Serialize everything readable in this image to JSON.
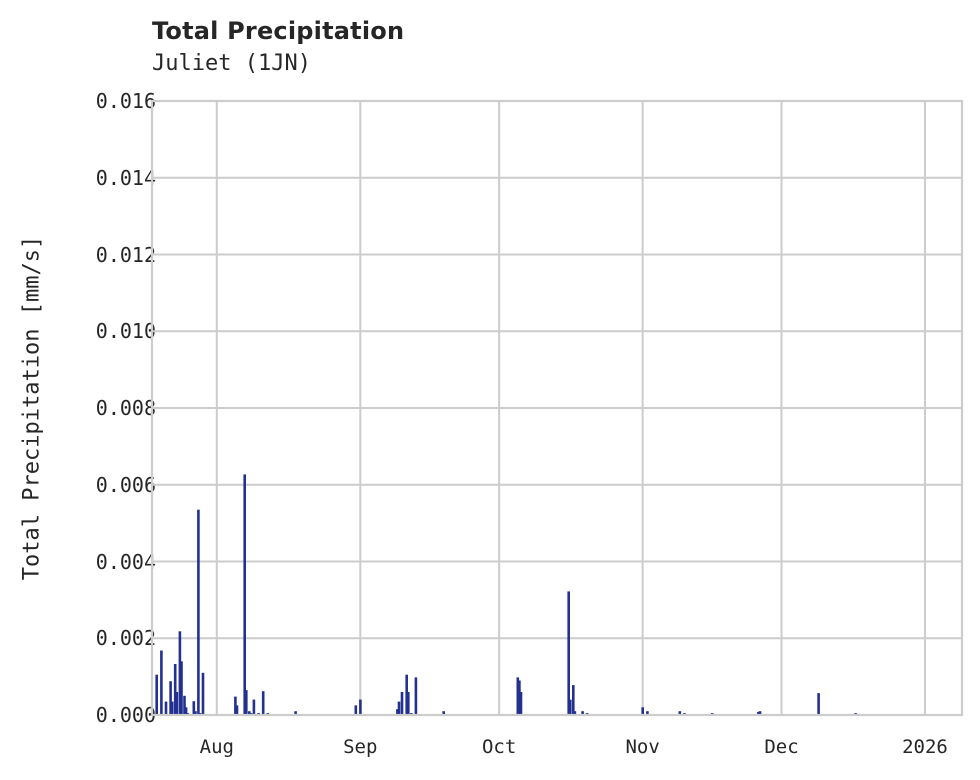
{
  "header": {
    "title": "Total Precipitation",
    "subtitle": "Juliet (1JN)"
  },
  "axes": {
    "ylabel": "Total Precipitation [mm/s]",
    "yticks": [
      "0.000",
      "0.002",
      "0.004",
      "0.006",
      "0.008",
      "0.010",
      "0.012",
      "0.014",
      "0.016"
    ],
    "xticks": [
      "Aug",
      "Sep",
      "Oct",
      "Nov",
      "Dec",
      "2026"
    ]
  },
  "colors": {
    "bar": "#22318f",
    "grid": "#cccccc",
    "frame": "#cccccc",
    "text": "#262626"
  },
  "chart_data": {
    "type": "bar",
    "title": "Total Precipitation",
    "subtitle": "Juliet (1JN)",
    "xlabel": "",
    "ylabel": "Total Precipitation [mm/s]",
    "ylim": [
      0,
      0.016
    ],
    "xlim": [
      "2025-07-18",
      "2026-01-09"
    ],
    "grid": true,
    "legend": null,
    "x_tick_labels": [
      "Aug",
      "Sep",
      "Oct",
      "Nov",
      "Dec",
      "2026"
    ],
    "y_tick_labels": [
      "0.000",
      "0.002",
      "0.004",
      "0.006",
      "0.008",
      "0.010",
      "0.012",
      "0.014",
      "0.016"
    ],
    "series": [
      {
        "name": "Total Precipitation",
        "x": [
          "2025-07-19",
          "2025-07-20",
          "2025-07-21",
          "2025-07-22",
          "2025-07-22",
          "2025-07-23",
          "2025-07-23",
          "2025-07-24",
          "2025-07-24",
          "2025-07-25",
          "2025-07-25",
          "2025-07-25",
          "2025-07-27",
          "2025-07-27",
          "2025-07-28",
          "2025-07-28",
          "2025-07-29",
          "2025-08-05",
          "2025-08-05",
          "2025-08-07",
          "2025-08-07",
          "2025-08-08",
          "2025-08-08",
          "2025-08-09",
          "2025-08-10",
          "2025-08-11",
          "2025-08-12",
          "2025-08-18",
          "2025-08-31",
          "2025-09-01",
          "2025-09-09",
          "2025-09-09",
          "2025-09-10",
          "2025-09-11",
          "2025-09-11",
          "2025-09-12",
          "2025-09-13",
          "2025-09-19",
          "2025-10-05",
          "2025-10-05",
          "2025-10-05",
          "2025-10-16",
          "2025-10-16",
          "2025-10-17",
          "2025-10-17",
          "2025-10-19",
          "2025-10-20",
          "2025-11-01",
          "2025-11-02",
          "2025-11-09",
          "2025-11-10",
          "2025-11-16",
          "2025-11-26",
          "2025-11-26",
          "2025-12-09",
          "2025-12-17"
        ],
        "values": [
          0.00105,
          0.00168,
          0.00035,
          0.00088,
          0.00035,
          0.00133,
          0.0006,
          0.00218,
          0.0014,
          0.0005,
          0.0002,
          5e-05,
          0.00036,
          0.0001,
          0.00535,
          5e-05,
          0.0011,
          0.00048,
          0.00025,
          0.00627,
          0.00065,
          0.0001,
          5e-05,
          0.0004,
          5e-05,
          0.00062,
          5e-05,
          0.0001,
          0.00025,
          0.0004,
          0.00015,
          0.00035,
          0.0006,
          0.00105,
          0.0006,
          5e-05,
          0.00098,
          0.0001,
          0.00098,
          0.0009,
          0.0006,
          0.00322,
          0.0004,
          0.00078,
          0.0001,
          0.0001,
          5e-05,
          0.0002,
          0.0001,
          0.0001,
          5e-05,
          5e-05,
          8e-05,
          0.0001,
          0.00057,
          5e-05
        ]
      }
    ]
  }
}
